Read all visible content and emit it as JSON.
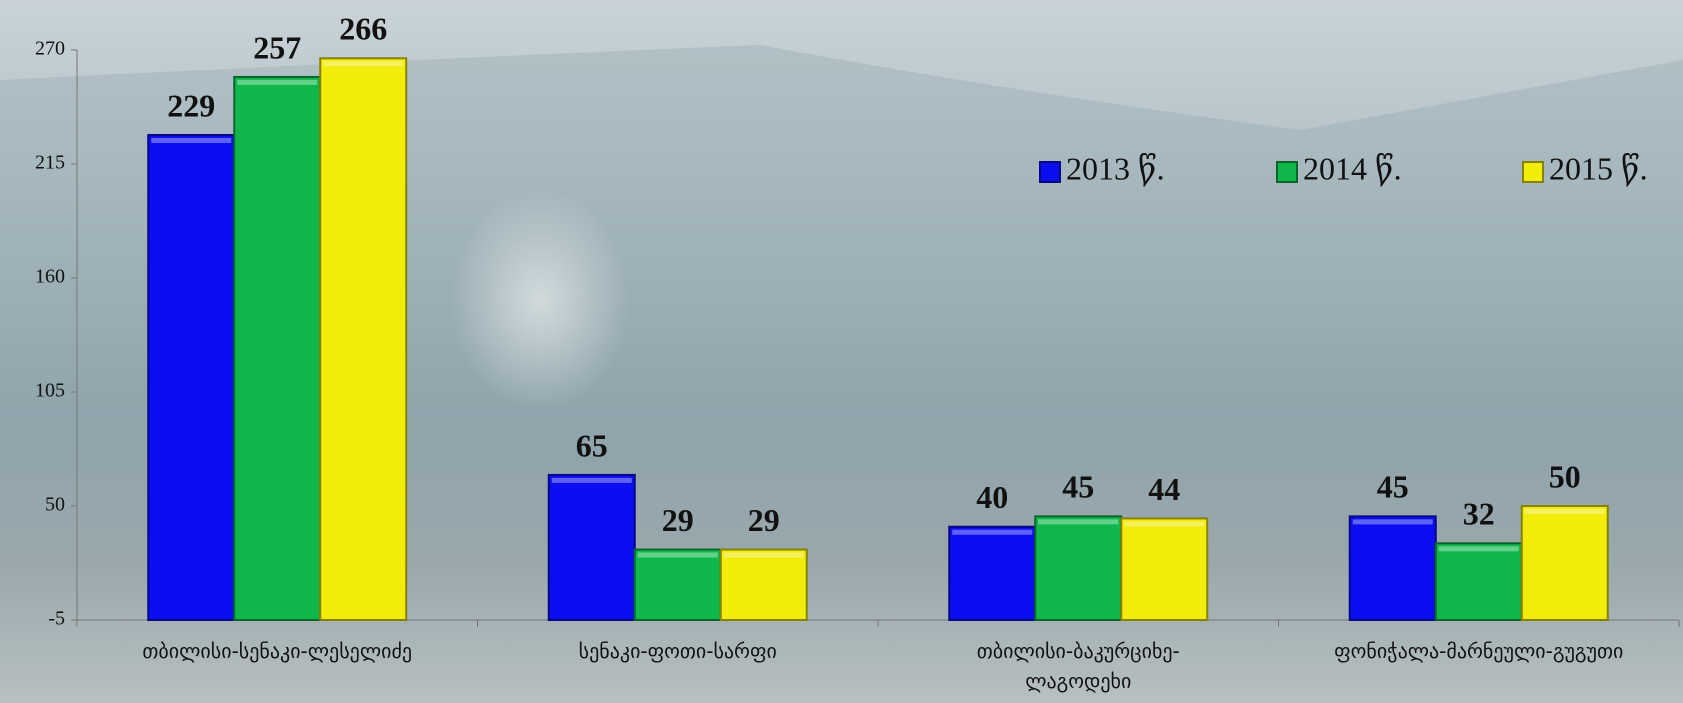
{
  "chart_data": {
    "type": "bar",
    "categories": [
      "თბილისი-სენაკი-ლესელიძე",
      "სენაკი-ფოთი-სარფი",
      "თბილისი-ბაკურციხე-ლაგოდეხი",
      "ფონიჭალა-მარნეული-გუგუთი"
    ],
    "series": [
      {
        "name": "2013 წ.",
        "color": "#0a0ef0",
        "values": [
          229,
          65,
          40,
          45
        ]
      },
      {
        "name": "2014 წ.",
        "color": "#10b84c",
        "values": [
          257,
          29,
          45,
          32
        ]
      },
      {
        "name": "2015 წ.",
        "color": "#f2ec0a",
        "values": [
          266,
          29,
          44,
          50
        ]
      }
    ],
    "ylim": [
      -5,
      270
    ],
    "yticks": [
      -5,
      50,
      105,
      160,
      215,
      270
    ],
    "grid": false,
    "legend": "top-right"
  }
}
